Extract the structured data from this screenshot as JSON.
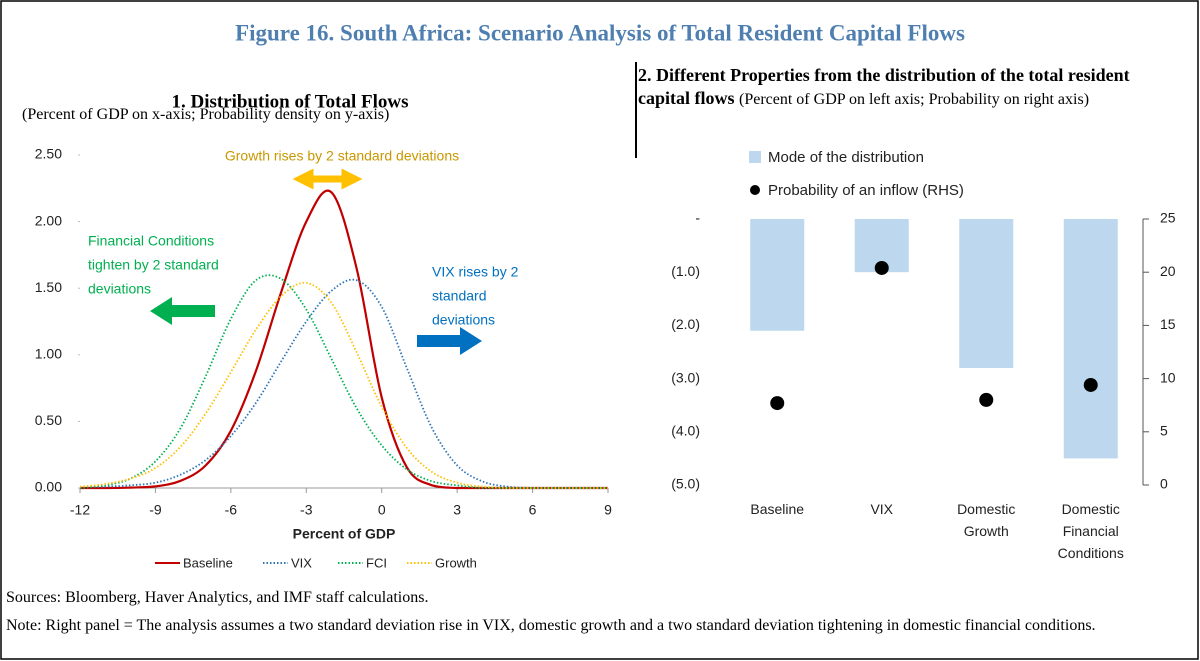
{
  "title": "Figure 16. South Africa: Scenario Analysis of Total Resident Capital Flows",
  "sources": "Sources: Bloomberg, Haver Analytics, and IMF staff calculations.",
  "note": "Note: Right panel = The analysis assumes a two standard deviation rise in VIX, domestic growth and a two standard deviation tightening in domestic financial conditions.",
  "chart_data": [
    {
      "type": "line",
      "title": "1. Distribution of Total Flows",
      "subtitle": "(Percent of GDP on x-axis; Probability density on y-axis)",
      "x_label": "Percent of GDP",
      "x": [
        -12,
        -11,
        -10,
        -9,
        -8,
        -7,
        -6,
        -5,
        -4,
        -3,
        -2,
        -1,
        0,
        1,
        2,
        3,
        4,
        5,
        6,
        7,
        8,
        9
      ],
      "series": [
        {
          "name": "Baseline",
          "color": "#c00000",
          "style": "solid",
          "values": [
            0,
            0,
            0.003,
            0.012,
            0.054,
            0.17,
            0.43,
            0.88,
            1.47,
            2.0,
            2.22,
            1.65,
            0.68,
            0.155,
            0.02,
            0,
            0,
            0,
            0,
            0,
            0,
            0
          ]
        },
        {
          "name": "VIX",
          "color": "#2e75b6",
          "style": "dotted",
          "values": [
            0,
            0.01,
            0.02,
            0.04,
            0.1,
            0.21,
            0.39,
            0.64,
            0.95,
            1.25,
            1.48,
            1.56,
            1.36,
            0.9,
            0.45,
            0.17,
            0.05,
            0.01,
            0,
            0,
            0,
            0
          ]
        },
        {
          "name": "FCI",
          "color": "#00b050",
          "style": "dotted",
          "values": [
            0,
            0.02,
            0.07,
            0.2,
            0.45,
            0.84,
            1.27,
            1.56,
            1.57,
            1.34,
            0.97,
            0.6,
            0.32,
            0.14,
            0.05,
            0.02,
            0,
            0,
            0,
            0,
            0,
            0
          ]
        },
        {
          "name": "Growth",
          "color": "#ffc000",
          "style": "dotted",
          "values": [
            0.01,
            0.03,
            0.07,
            0.15,
            0.31,
            0.56,
            0.87,
            1.19,
            1.44,
            1.54,
            1.39,
            1.02,
            0.61,
            0.3,
            0.12,
            0.04,
            0.01,
            0,
            0,
            0,
            0,
            0
          ]
        }
      ],
      "xlim": [
        -12,
        9
      ],
      "xticks": [
        -12,
        -9,
        -6,
        -3,
        0,
        3,
        6,
        9
      ],
      "ylim": [
        0,
        2.5
      ],
      "yticks": [
        {
          "value": 0,
          "label": "0.00"
        },
        {
          "value": 0.5,
          "label": "0.50"
        },
        {
          "value": 1,
          "label": "1.00"
        },
        {
          "value": 1.5,
          "label": "1.50"
        },
        {
          "value": 2,
          "label": "2.00"
        },
        {
          "value": 2.5,
          "label": "2.50"
        }
      ],
      "legend": "bottom",
      "annotations": [
        {
          "lines": [
            "Growth rises by 2 standard deviations"
          ],
          "color": "#c99700"
        },
        {
          "lines": [
            "Financial Conditions",
            "tighten by 2 standard",
            "deviations"
          ],
          "color": "#00b050"
        },
        {
          "lines": [
            "VIX rises by 2",
            "standard",
            "deviations"
          ],
          "color": "#0070c0"
        }
      ]
    },
    {
      "type": "combo",
      "title": "2. Different Properties from the distribution of the total resident capital flows",
      "subtitle": "(Percent of GDP on left axis; Probability on right axis)",
      "categories": [
        "Baseline",
        "VIX",
        "Domestic Growth",
        "Domestic Financial Conditions"
      ],
      "series": [
        {
          "name": "Mode of the distribution",
          "type": "bar",
          "color": "#bdd7ee",
          "values": [
            -2.1,
            -1.0,
            -2.8,
            -4.5
          ]
        },
        {
          "name": "Probability of an inflow (RHS)",
          "type": "scatter",
          "color": "#000000",
          "axis": "y2",
          "values": [
            7.7,
            20.4,
            8.0,
            9.4
          ]
        }
      ],
      "ylim": [
        -5,
        0
      ],
      "yticks": [
        {
          "value": 0,
          "label": "-"
        },
        {
          "value": -1,
          "label": "(1.0)"
        },
        {
          "value": -2,
          "label": "(2.0)"
        },
        {
          "value": -3,
          "label": "(3.0)"
        },
        {
          "value": -4,
          "label": "(4.0)"
        },
        {
          "value": -5,
          "label": "(5.0)"
        }
      ],
      "y2lim": [
        0,
        25
      ],
      "y2ticks": [
        0,
        5,
        10,
        15,
        20,
        25
      ],
      "legend": "top"
    }
  ]
}
